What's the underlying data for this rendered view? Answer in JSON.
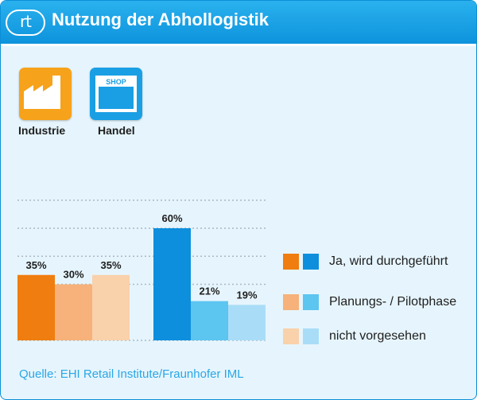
{
  "header": {
    "logo_text": "rt",
    "title": "Nutzung der Abhollogistik"
  },
  "icons": {
    "industrie": {
      "icon": "factory-icon",
      "label": "Industrie",
      "color": "#f7a21b"
    },
    "handel": {
      "icon": "shop-icon",
      "label": "Handel",
      "shop_sign": "SHOP",
      "color": "#1a9fe4"
    }
  },
  "chart_data": {
    "type": "bar",
    "title": "Nutzung der Abhollogistik",
    "ylim": [
      0,
      75
    ],
    "grid": true,
    "legend_position": "right",
    "groups": [
      {
        "name": "Industrie",
        "series": [
          {
            "name": "Ja, wird durchgeführt",
            "value": 35,
            "label": "35%",
            "color": "#f07d0f"
          },
          {
            "name": "Planungs- / Pilotphase",
            "value": 30,
            "label": "30%",
            "color": "#f6b27a"
          },
          {
            "name": "nicht vorgesehen",
            "value": 35,
            "label": "35%",
            "color": "#f9d1aa"
          }
        ]
      },
      {
        "name": "Handel",
        "series": [
          {
            "name": "Ja, wird durchgeführt",
            "value": 60,
            "label": "60%",
            "color": "#0d8fdd"
          },
          {
            "name": "Planungs- / Pilotphase",
            "value": 21,
            "label": "21%",
            "color": "#5cc5f0"
          },
          {
            "name": "nicht vorgesehen",
            "value": 19,
            "label": "19%",
            "color": "#a9ddf7"
          }
        ]
      }
    ],
    "legend": [
      "Ja, wird durchgeführt",
      "Planungs- / Pilotphase",
      "nicht vorgesehen"
    ]
  },
  "source": "Quelle: EHI Retail Institute/Fraunhofer IML"
}
